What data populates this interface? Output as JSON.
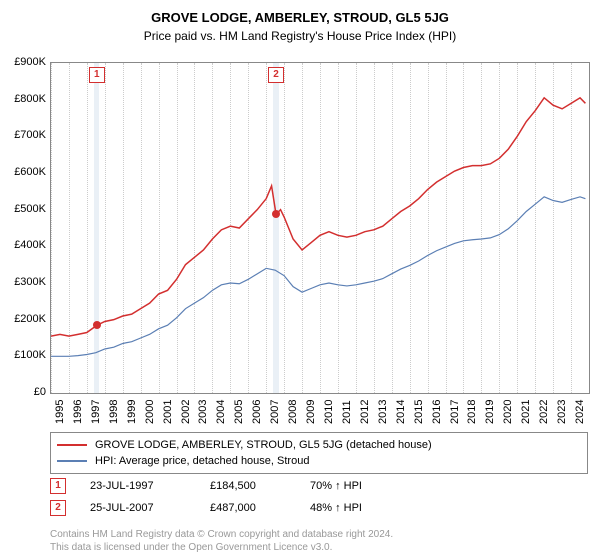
{
  "title": "GROVE LODGE, AMBERLEY, STROUD, GL5 5JG",
  "subtitle": "Price paid vs. HM Land Registry's House Price Index (HPI)",
  "chart": {
    "background_color": "#ffffff",
    "border_color": "#888888",
    "grid_color": "#cccccc",
    "y": {
      "min": 0,
      "max": 900000,
      "ticks": [
        0,
        100000,
        200000,
        300000,
        400000,
        500000,
        600000,
        700000,
        800000,
        900000
      ],
      "tick_labels": [
        "£0",
        "£100K",
        "£200K",
        "£300K",
        "£400K",
        "£500K",
        "£600K",
        "£700K",
        "£800K",
        "£900K"
      ],
      "fontsize": 11
    },
    "x": {
      "min": 1995,
      "max": 2025,
      "ticks": [
        1995,
        1996,
        1997,
        1998,
        1999,
        2000,
        2001,
        2002,
        2003,
        2004,
        2005,
        2006,
        2007,
        2008,
        2009,
        2010,
        2011,
        2012,
        2013,
        2014,
        2015,
        2016,
        2017,
        2018,
        2019,
        2020,
        2021,
        2022,
        2023,
        2024
      ],
      "fontsize": 11
    },
    "series": [
      {
        "name": "property",
        "label": "GROVE LODGE, AMBERLEY, STROUD, GL5 5JG (detached house)",
        "color": "#d32f2f",
        "line_width": 1.5,
        "points": [
          [
            1995,
            155000
          ],
          [
            1995.5,
            160000
          ],
          [
            1996,
            155000
          ],
          [
            1996.5,
            160000
          ],
          [
            1997,
            165000
          ],
          [
            1997.55,
            184500
          ],
          [
            1998,
            195000
          ],
          [
            1998.5,
            200000
          ],
          [
            1999,
            210000
          ],
          [
            1999.5,
            215000
          ],
          [
            2000,
            230000
          ],
          [
            2000.5,
            245000
          ],
          [
            2001,
            270000
          ],
          [
            2001.5,
            280000
          ],
          [
            2002,
            310000
          ],
          [
            2002.5,
            350000
          ],
          [
            2003,
            370000
          ],
          [
            2003.5,
            390000
          ],
          [
            2004,
            420000
          ],
          [
            2004.5,
            445000
          ],
          [
            2005,
            455000
          ],
          [
            2005.5,
            450000
          ],
          [
            2006,
            475000
          ],
          [
            2006.5,
            500000
          ],
          [
            2007,
            530000
          ],
          [
            2007.3,
            565000
          ],
          [
            2007.55,
            487000
          ],
          [
            2007.8,
            500000
          ],
          [
            2008,
            480000
          ],
          [
            2008.5,
            420000
          ],
          [
            2009,
            390000
          ],
          [
            2009.5,
            410000
          ],
          [
            2010,
            430000
          ],
          [
            2010.5,
            440000
          ],
          [
            2011,
            430000
          ],
          [
            2011.5,
            425000
          ],
          [
            2012,
            430000
          ],
          [
            2012.5,
            440000
          ],
          [
            2013,
            445000
          ],
          [
            2013.5,
            455000
          ],
          [
            2014,
            475000
          ],
          [
            2014.5,
            495000
          ],
          [
            2015,
            510000
          ],
          [
            2015.5,
            530000
          ],
          [
            2016,
            555000
          ],
          [
            2016.5,
            575000
          ],
          [
            2017,
            590000
          ],
          [
            2017.5,
            605000
          ],
          [
            2018,
            615000
          ],
          [
            2018.5,
            620000
          ],
          [
            2019,
            620000
          ],
          [
            2019.5,
            625000
          ],
          [
            2020,
            640000
          ],
          [
            2020.5,
            665000
          ],
          [
            2021,
            700000
          ],
          [
            2021.5,
            740000
          ],
          [
            2022,
            770000
          ],
          [
            2022.5,
            805000
          ],
          [
            2023,
            785000
          ],
          [
            2023.5,
            775000
          ],
          [
            2024,
            790000
          ],
          [
            2024.5,
            805000
          ],
          [
            2024.8,
            790000
          ]
        ]
      },
      {
        "name": "hpi",
        "label": "HPI: Average price, detached house, Stroud",
        "color": "#5b7fb4",
        "line_width": 1.2,
        "points": [
          [
            1995,
            100000
          ],
          [
            1995.5,
            100000
          ],
          [
            1996,
            100000
          ],
          [
            1996.5,
            102000
          ],
          [
            1997,
            105000
          ],
          [
            1997.5,
            110000
          ],
          [
            1998,
            120000
          ],
          [
            1998.5,
            125000
          ],
          [
            1999,
            135000
          ],
          [
            1999.5,
            140000
          ],
          [
            2000,
            150000
          ],
          [
            2000.5,
            160000
          ],
          [
            2001,
            175000
          ],
          [
            2001.5,
            185000
          ],
          [
            2002,
            205000
          ],
          [
            2002.5,
            230000
          ],
          [
            2003,
            245000
          ],
          [
            2003.5,
            260000
          ],
          [
            2004,
            280000
          ],
          [
            2004.5,
            295000
          ],
          [
            2005,
            300000
          ],
          [
            2005.5,
            298000
          ],
          [
            2006,
            310000
          ],
          [
            2006.5,
            325000
          ],
          [
            2007,
            340000
          ],
          [
            2007.5,
            335000
          ],
          [
            2008,
            320000
          ],
          [
            2008.5,
            290000
          ],
          [
            2009,
            275000
          ],
          [
            2009.5,
            285000
          ],
          [
            2010,
            295000
          ],
          [
            2010.5,
            300000
          ],
          [
            2011,
            295000
          ],
          [
            2011.5,
            292000
          ],
          [
            2012,
            295000
          ],
          [
            2012.5,
            300000
          ],
          [
            2013,
            305000
          ],
          [
            2013.5,
            312000
          ],
          [
            2014,
            325000
          ],
          [
            2014.5,
            338000
          ],
          [
            2015,
            348000
          ],
          [
            2015.5,
            360000
          ],
          [
            2016,
            375000
          ],
          [
            2016.5,
            388000
          ],
          [
            2017,
            398000
          ],
          [
            2017.5,
            408000
          ],
          [
            2018,
            415000
          ],
          [
            2018.5,
            418000
          ],
          [
            2019,
            420000
          ],
          [
            2019.5,
            423000
          ],
          [
            2020,
            432000
          ],
          [
            2020.5,
            448000
          ],
          [
            2021,
            470000
          ],
          [
            2021.5,
            495000
          ],
          [
            2022,
            515000
          ],
          [
            2022.5,
            535000
          ],
          [
            2023,
            525000
          ],
          [
            2023.5,
            520000
          ],
          [
            2024,
            528000
          ],
          [
            2024.5,
            535000
          ],
          [
            2024.8,
            530000
          ]
        ]
      }
    ],
    "shaded_bands": [
      {
        "from": 1997.4,
        "to": 1997.7,
        "color": "#dce6f0"
      },
      {
        "from": 2007.4,
        "to": 2007.7,
        "color": "#dce6f0"
      }
    ],
    "markers": [
      {
        "n": "1",
        "year": 1997.55,
        "value": 184500
      },
      {
        "n": "2",
        "year": 2007.55,
        "value": 487000
      }
    ]
  },
  "legend": {
    "border_color": "#888"
  },
  "sales": [
    {
      "n": "1",
      "date": "23-JUL-1997",
      "price": "£184,500",
      "vs_hpi": "70% ↑ HPI"
    },
    {
      "n": "2",
      "date": "25-JUL-2007",
      "price": "£487,000",
      "vs_hpi": "48% ↑ HPI"
    }
  ],
  "footer": {
    "line1": "Contains HM Land Registry data © Crown copyright and database right 2024.",
    "line2": "This data is licensed under the Open Government Licence v3.0."
  }
}
